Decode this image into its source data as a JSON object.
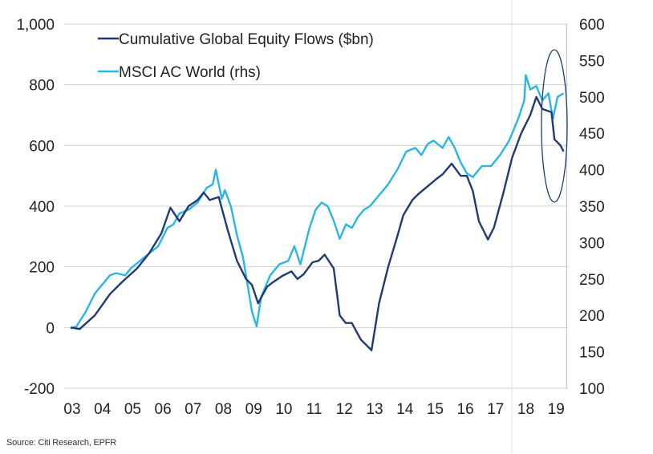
{
  "chart_data": {
    "type": "line",
    "source": "Source: Citi Research, EPFR",
    "x_ticks": [
      "03",
      "04",
      "05",
      "06",
      "07",
      "08",
      "09",
      "10",
      "11",
      "12",
      "13",
      "14",
      "15",
      "16",
      "17",
      "18",
      "19"
    ],
    "left_axis": {
      "ticks": [
        "1,000",
        "800",
        "600",
        "400",
        "200",
        "0",
        "-200"
      ],
      "range": [
        -200,
        1000
      ]
    },
    "right_axis": {
      "ticks": [
        "600",
        "550",
        "500",
        "450",
        "400",
        "350",
        "300",
        "250",
        "200",
        "150",
        "100"
      ],
      "range": [
        100,
        600
      ]
    },
    "grid": "horizontal",
    "legend_position": "top-left",
    "colors": {
      "flows": "#1f3b73",
      "msci": "#29b6e6",
      "grid": "#d0d0d0"
    },
    "series": [
      {
        "name": "Cumulative Global Equity Flows ($bn)",
        "axis": "left",
        "x": [
          2003.0,
          2003.3,
          2003.8,
          2004.3,
          2004.7,
          2005.2,
          2005.6,
          2006.0,
          2006.3,
          2006.6,
          2006.9,
          2007.2,
          2007.4,
          2007.6,
          2007.9,
          2008.2,
          2008.5,
          2008.8,
          2009.0,
          2009.2,
          2009.5,
          2009.7,
          2010.0,
          2010.3,
          2010.5,
          2010.7,
          2011.0,
          2011.2,
          2011.4,
          2011.7,
          2011.9,
          2012.1,
          2012.3,
          2012.6,
          2012.8,
          2012.95,
          2013.2,
          2013.5,
          2013.8,
          2014.0,
          2014.3,
          2014.5,
          2014.8,
          2015.1,
          2015.3,
          2015.6,
          2015.9,
          2016.1,
          2016.3,
          2016.5,
          2016.8,
          2017.0,
          2017.3,
          2017.6,
          2017.9,
          2018.2,
          2018.4,
          2018.6,
          2018.9,
          2019.0,
          2019.2,
          2019.3
        ],
        "y": [
          0,
          -5,
          40,
          110,
          150,
          195,
          245,
          310,
          395,
          350,
          400,
          420,
          445,
          420,
          430,
          320,
          220,
          160,
          140,
          80,
          135,
          150,
          170,
          185,
          160,
          175,
          215,
          220,
          240,
          195,
          40,
          15,
          15,
          -40,
          -60,
          -75,
          80,
          200,
          300,
          370,
          420,
          440,
          465,
          490,
          505,
          540,
          500,
          500,
          450,
          350,
          290,
          330,
          440,
          560,
          640,
          700,
          760,
          720,
          710,
          620,
          600,
          580
        ]
      },
      {
        "name": "MSCI AC World (rhs)",
        "axis": "right",
        "x": [
          2003.0,
          2003.2,
          2003.5,
          2003.8,
          2004.0,
          2004.3,
          2004.5,
          2004.8,
          2005.0,
          2005.3,
          2005.6,
          2005.9,
          2006.2,
          2006.4,
          2006.6,
          2006.9,
          2007.2,
          2007.5,
          2007.7,
          2007.8,
          2008.0,
          2008.1,
          2008.3,
          2008.5,
          2008.7,
          2008.9,
          2009.0,
          2009.15,
          2009.3,
          2009.6,
          2009.9,
          2010.2,
          2010.4,
          2010.6,
          2010.9,
          2011.1,
          2011.3,
          2011.5,
          2011.7,
          2011.9,
          2012.1,
          2012.3,
          2012.5,
          2012.7,
          2012.9,
          2013.2,
          2013.5,
          2013.8,
          2014.1,
          2014.4,
          2014.6,
          2014.8,
          2015.0,
          2015.3,
          2015.5,
          2015.7,
          2015.9,
          2016.1,
          2016.3,
          2016.6,
          2016.9,
          2017.2,
          2017.5,
          2017.8,
          2018.0,
          2018.05,
          2018.2,
          2018.4,
          2018.6,
          2018.8,
          2018.95,
          2019.1,
          2019.3
        ],
        "y": [
          182,
          185,
          205,
          230,
          240,
          255,
          258,
          255,
          265,
          275,
          285,
          295,
          320,
          325,
          340,
          345,
          355,
          375,
          380,
          400,
          360,
          372,
          350,
          310,
          280,
          230,
          205,
          185,
          225,
          255,
          270,
          275,
          295,
          270,
          320,
          345,
          355,
          350,
          330,
          305,
          325,
          320,
          335,
          345,
          350,
          365,
          380,
          400,
          425,
          430,
          420,
          435,
          440,
          430,
          445,
          430,
          410,
          395,
          390,
          405,
          405,
          420,
          440,
          470,
          495,
          530,
          510,
          515,
          495,
          505,
          470,
          500,
          505
        ]
      }
    ]
  }
}
